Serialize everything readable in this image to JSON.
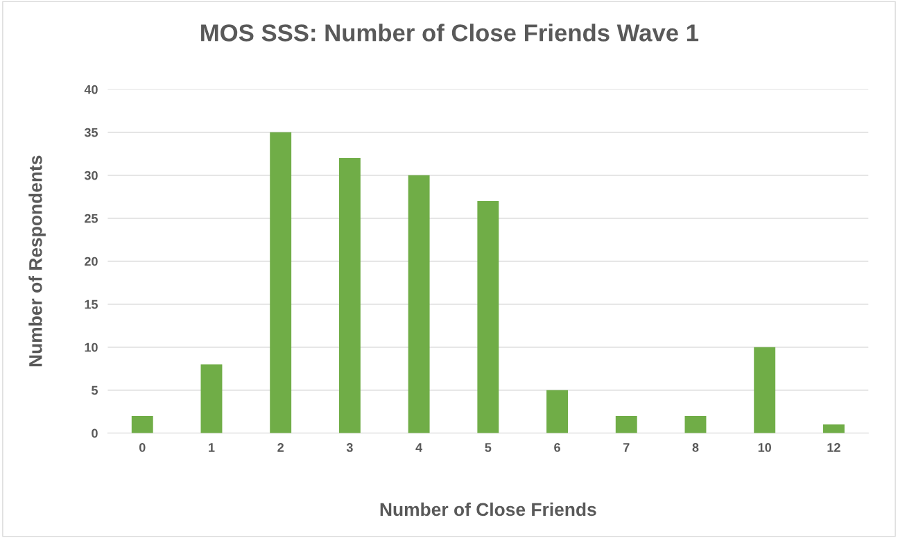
{
  "chart_data": {
    "type": "bar",
    "title": "MOS SSS: Number of Close Friends Wave 1",
    "xlabel": "Number of Close Friends",
    "ylabel": "Number of Respondents",
    "categories": [
      "0",
      "1",
      "2",
      "3",
      "4",
      "5",
      "6",
      "7",
      "8",
      "10",
      "12"
    ],
    "values": [
      2,
      8,
      35,
      32,
      30,
      27,
      5,
      2,
      2,
      10,
      1
    ],
    "color": "#70ad47",
    "ylim": [
      0,
      40
    ],
    "yticks": [
      0,
      5,
      10,
      15,
      20,
      25,
      30,
      35,
      40
    ],
    "grid": "y",
    "legend": false
  }
}
